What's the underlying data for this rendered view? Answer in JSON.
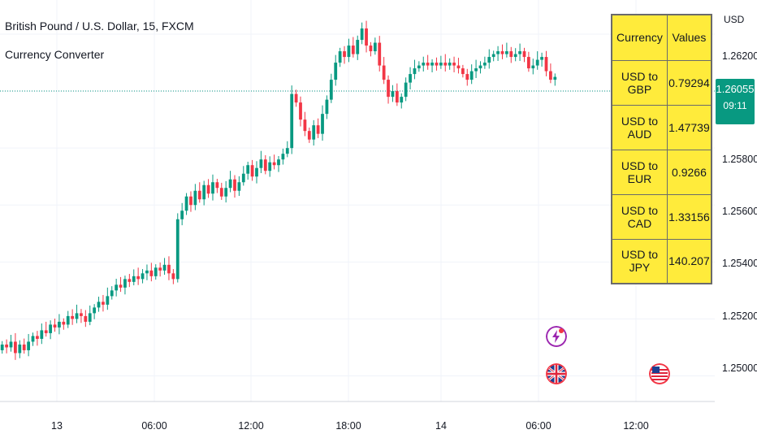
{
  "header": {
    "title": "British Pound / U.S. Dollar, 15, FXCM",
    "indicator": "Currency Converter"
  },
  "price_axis": {
    "unit": "USD",
    "labels": [
      "1.26200",
      "1.25800",
      "1.25600",
      "1.25400",
      "1.25200",
      "1.25000"
    ]
  },
  "last_price": {
    "value": "1.26055",
    "countdown": "09:11"
  },
  "time_axis": {
    "labels": [
      "13",
      "06:00",
      "12:00",
      "18:00",
      "14",
      "06:00",
      "12:00"
    ]
  },
  "converter_table": {
    "headers": [
      "Currency",
      "Values"
    ],
    "rows": [
      {
        "pair": "USD to GBP",
        "value": "0.79294"
      },
      {
        "pair": "USD to AUD",
        "value": "1.47739"
      },
      {
        "pair": "USD to EUR",
        "value": "0.9266"
      },
      {
        "pair": "USD to CAD",
        "value": "1.33156"
      },
      {
        "pair": "USD to JPY",
        "value": "140.207"
      }
    ]
  },
  "colors": {
    "up": "#089981",
    "down": "#f23645",
    "table_bg": "#ffeb3b",
    "grid": "#f0f3fa"
  },
  "icons": [
    "lightning-event-icon",
    "uk-flag-icon",
    "us-flag-icon"
  ],
  "chart_data": {
    "type": "candlestick",
    "symbol": "GBPUSD",
    "interval": "15",
    "ylim": [
      1.2491,
      1.2632
    ],
    "last": 1.26055,
    "close_path": [
      1.2511,
      1.251,
      1.2512,
      1.2508,
      1.2511,
      1.2509,
      1.2512,
      1.2514,
      1.2513,
      1.2516,
      1.2515,
      1.2518,
      1.2517,
      1.2519,
      1.2518,
      1.2521,
      1.252,
      1.2522,
      1.2521,
      1.2519,
      1.2522,
      1.2524,
      1.2526,
      1.2525,
      1.2528,
      1.253,
      1.2532,
      1.2531,
      1.2534,
      1.2533,
      1.2535,
      1.2534,
      1.2536,
      1.2537,
      1.2535,
      1.2538,
      1.2537,
      1.2539,
      1.2536,
      1.2534,
      1.2555,
      1.2558,
      1.2563,
      1.256,
      1.2565,
      1.2562,
      1.2567,
      1.2564,
      1.2568,
      1.2566,
      1.2563,
      1.2566,
      1.2569,
      1.2565,
      1.2568,
      1.2571,
      1.2574,
      1.257,
      1.2573,
      1.2576,
      1.2572,
      1.2575,
      1.2574,
      1.2576,
      1.2578,
      1.258,
      1.2599,
      1.2596,
      1.259,
      1.2586,
      1.2583,
      1.2588,
      1.2585,
      1.2592,
      1.2597,
      1.2604,
      1.261,
      1.2614,
      1.2612,
      1.2616,
      1.2613,
      1.2618,
      1.2622,
      1.2616,
      1.2614,
      1.2617,
      1.2609,
      1.2604,
      1.2598,
      1.26,
      1.2596,
      1.2598,
      1.2603,
      1.2606,
      1.2608,
      1.2609,
      1.261,
      1.2609,
      1.261,
      1.2609,
      1.261,
      1.2609,
      1.261,
      1.2609,
      1.2608,
      1.2606,
      1.2604,
      1.2607,
      1.2608,
      1.2609,
      1.261,
      1.2612,
      1.2613,
      1.2614,
      1.2613,
      1.2614,
      1.2612,
      1.2613,
      1.2614,
      1.2612,
      1.2608,
      1.2609,
      1.2611,
      1.2612,
      1.2607,
      1.2604,
      1.2605
    ]
  }
}
